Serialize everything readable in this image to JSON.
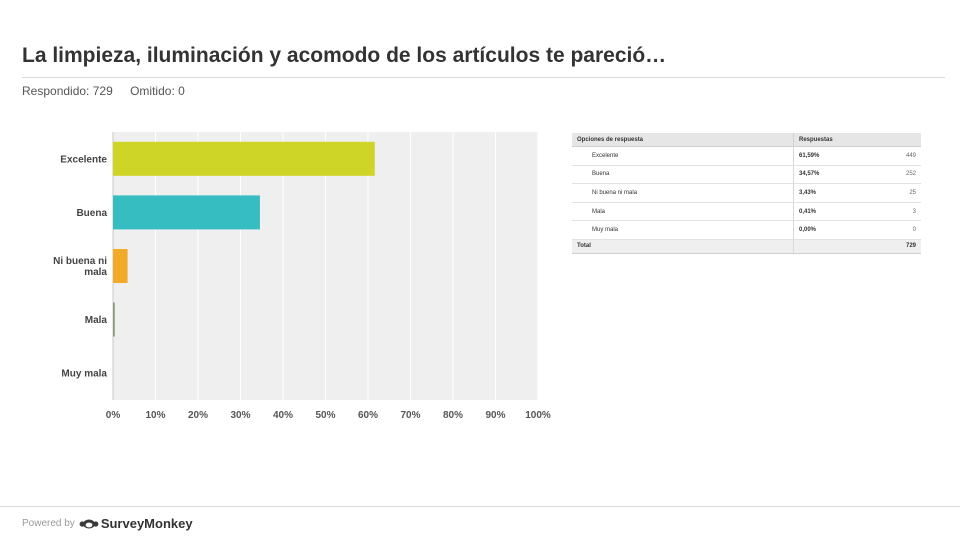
{
  "title": "La limpieza, iluminación y acomodo de los artículos te pareció…",
  "meta": {
    "answered": "Respondido: 729",
    "skipped": "Omitido: 0"
  },
  "chart_data": {
    "type": "bar",
    "orientation": "horizontal",
    "categories": [
      "Excelente",
      "Buena",
      "Ni buena ni mala",
      "Mala",
      "Muy mala"
    ],
    "values": [
      61.59,
      34.57,
      3.43,
      0.41,
      0.0
    ],
    "colors": [
      "#cfd526",
      "#35bdc1",
      "#f2aa29",
      "#8a9a7a",
      "#999999"
    ],
    "xticks": [
      "0%",
      "10%",
      "20%",
      "30%",
      "40%",
      "50%",
      "60%",
      "70%",
      "80%",
      "90%",
      "100%"
    ],
    "xlim": [
      0,
      100
    ],
    "grid": true,
    "plot_background": "#efefef"
  },
  "table": {
    "headers": [
      "Opciones de respuesta",
      "Respuestas"
    ],
    "rows": [
      {
        "option": "Excelente",
        "percent": "61,59%",
        "count": "449"
      },
      {
        "option": "Buena",
        "percent": "34,57%",
        "count": "252"
      },
      {
        "option": "Ni buena ni mala",
        "percent": "3,43%",
        "count": "25"
      },
      {
        "option": "Mala",
        "percent": "0,41%",
        "count": "3"
      },
      {
        "option": "Muy mala",
        "percent": "0,00%",
        "count": "0"
      }
    ],
    "total_label": "Total",
    "total_count": "729"
  },
  "footer": {
    "powered_by": "Powered by",
    "brand": "SurveyMonkey",
    "logo_icon": "surveymonkey-logo-icon"
  }
}
